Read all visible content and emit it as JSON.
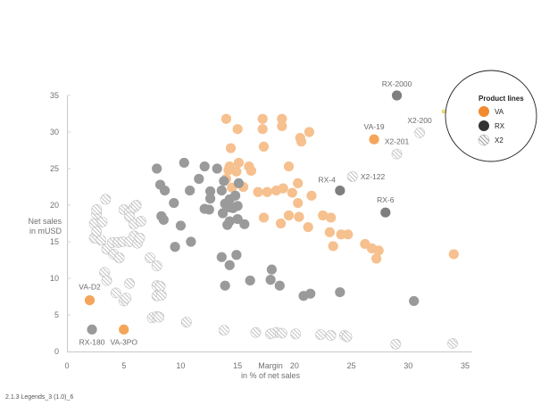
{
  "footer": "2.1.3 Legends_3 (1.0)_6",
  "chart_data": {
    "type": "scatter",
    "xlabel_lines": [
      "Margin",
      "in % of net sales"
    ],
    "ylabel_lines": [
      "Net sales",
      "in mUSD"
    ],
    "xlim": [
      0,
      35
    ],
    "ylim": [
      0,
      35
    ],
    "x_ticks": [
      0,
      5,
      10,
      15,
      20,
      25,
      30,
      35
    ],
    "y_ticks": [
      0,
      5,
      10,
      15,
      20,
      25,
      30,
      35
    ],
    "grid": false,
    "legend": {
      "title": "Product lines",
      "placement": "top-right",
      "entries": [
        {
          "label": "VA",
          "series": "VA"
        },
        {
          "label": "RX",
          "series": "RX"
        },
        {
          "label": "X2",
          "series": "X2"
        }
      ]
    },
    "colors": {
      "VA": "#f6c08f",
      "RX": "#9a9a9a",
      "X2_stripe": "#b9b9b9",
      "VA_legend": "#f28a2e",
      "RX_legend": "#333333",
      "highlight": "#f5a55a"
    },
    "series": [
      {
        "name": "VA",
        "points": [
          [
            14,
            31.8
          ],
          [
            17.2,
            31.8
          ],
          [
            18.9,
            31.8
          ],
          [
            21.3,
            30.0
          ],
          [
            15,
            30.4
          ],
          [
            17.2,
            30.4
          ],
          [
            18.9,
            30.8
          ],
          [
            20.5,
            29.2
          ],
          [
            20.6,
            28.7
          ],
          [
            14.4,
            27.8
          ],
          [
            17.3,
            28.0
          ],
          [
            15.1,
            25.8
          ],
          [
            14.3,
            25.3
          ],
          [
            14.2,
            24.8
          ],
          [
            14.9,
            24.6
          ],
          [
            16.0,
            25.3
          ],
          [
            16.2,
            24.7
          ],
          [
            19.5,
            25.3
          ],
          [
            14.0,
            23.6
          ],
          [
            14.5,
            22.4
          ],
          [
            15.5,
            22.5
          ],
          [
            16.8,
            21.8
          ],
          [
            17.6,
            21.8
          ],
          [
            18.4,
            22.0
          ],
          [
            19.0,
            22.3
          ],
          [
            19.8,
            21.7
          ],
          [
            20.3,
            23.0
          ],
          [
            21.5,
            21.3
          ],
          [
            20.3,
            20.3
          ],
          [
            17.3,
            18.3
          ],
          [
            18.8,
            17.5
          ],
          [
            19.5,
            18.6
          ],
          [
            20.4,
            18.4
          ],
          [
            21.2,
            17.0
          ],
          [
            22.5,
            18.6
          ],
          [
            23.2,
            18.3
          ],
          [
            23.1,
            16.3
          ],
          [
            23.4,
            14.4
          ],
          [
            24.1,
            16.0
          ],
          [
            24.7,
            16.0
          ],
          [
            26.2,
            14.7
          ],
          [
            26.8,
            14.1
          ],
          [
            27.4,
            13.8
          ],
          [
            27.2,
            12.7
          ],
          [
            34.0,
            13.3
          ]
        ]
      },
      {
        "name": "RX",
        "points": [
          [
            7.9,
            25.0
          ],
          [
            8.2,
            22.8
          ],
          [
            8.6,
            22.0
          ],
          [
            8.3,
            18.5
          ],
          [
            8.5,
            18.0
          ],
          [
            9.4,
            20.3
          ],
          [
            9.5,
            14.3
          ],
          [
            10.0,
            17.2
          ],
          [
            10.3,
            25.8
          ],
          [
            10.8,
            22.0
          ],
          [
            10.9,
            15.0
          ],
          [
            11.6,
            23.6
          ],
          [
            12.1,
            19.5
          ],
          [
            12.6,
            21.9
          ],
          [
            12.6,
            20.9
          ],
          [
            12.5,
            19.4
          ],
          [
            12.1,
            25.3
          ],
          [
            13.2,
            25.0
          ],
          [
            13.6,
            22.0
          ],
          [
            13.8,
            23.3
          ],
          [
            13.9,
            20.2
          ],
          [
            13.7,
            18.9
          ],
          [
            14.1,
            17.3
          ],
          [
            14.3,
            17.8
          ],
          [
            14.6,
            19.6
          ],
          [
            14.3,
            19.7
          ],
          [
            14.3,
            20.8
          ],
          [
            15.0,
            19.9
          ],
          [
            15.0,
            18.1
          ],
          [
            15.1,
            23.0
          ],
          [
            14.8,
            21.3
          ],
          [
            15.6,
            17.4
          ],
          [
            13.6,
            12.9
          ],
          [
            14.3,
            11.8
          ],
          [
            14.9,
            13.2
          ],
          [
            13.9,
            9.0
          ],
          [
            16.1,
            9.7
          ],
          [
            17.9,
            9.8
          ],
          [
            18.0,
            11.2
          ],
          [
            18.7,
            9.0
          ],
          [
            20.8,
            7.6
          ],
          [
            21.4,
            7.9
          ],
          [
            24.0,
            8.1
          ],
          [
            2.2,
            3.0
          ],
          [
            30.5,
            6.9
          ]
        ]
      },
      {
        "name": "X2",
        "points": [
          [
            2.4,
            17.5
          ],
          [
            2.4,
            15.5
          ],
          [
            2.6,
            18.8
          ],
          [
            2.6,
            19.4
          ],
          [
            2.6,
            16.4
          ],
          [
            3.0,
            15.2
          ],
          [
            3.1,
            17.7
          ],
          [
            3.4,
            20.8
          ],
          [
            3.5,
            14.0
          ],
          [
            4.0,
            14.9
          ],
          [
            4.5,
            14.9
          ],
          [
            4.1,
            13.3
          ],
          [
            4.6,
            12.8
          ],
          [
            4.9,
            15.0
          ],
          [
            5.0,
            19.4
          ],
          [
            5.5,
            19.0
          ],
          [
            5.5,
            18.4
          ],
          [
            5.5,
            15.0
          ],
          [
            5.9,
            17.4
          ],
          [
            5.9,
            15.8
          ],
          [
            6.2,
            14.8
          ],
          [
            6.4,
            15.5
          ],
          [
            6.5,
            17.8
          ],
          [
            5.9,
            19.7
          ],
          [
            6.1,
            20.0
          ],
          [
            3.3,
            10.8
          ],
          [
            3.5,
            9.7
          ],
          [
            4.3,
            8.0
          ],
          [
            5.0,
            6.9
          ],
          [
            5.2,
            7.3
          ],
          [
            5.5,
            9.3
          ],
          [
            7.3,
            12.8
          ],
          [
            7.9,
            11.7
          ],
          [
            7.9,
            9.0
          ],
          [
            8.2,
            8.9
          ],
          [
            7.9,
            7.6
          ],
          [
            8.3,
            7.7
          ],
          [
            7.5,
            4.6
          ],
          [
            7.9,
            4.8
          ],
          [
            8.1,
            4.7
          ],
          [
            10.5,
            4.0
          ],
          [
            13.8,
            2.9
          ],
          [
            16.6,
            2.6
          ],
          [
            18.4,
            2.6
          ],
          [
            18.9,
            2.5
          ],
          [
            17.9,
            2.4
          ],
          [
            20.1,
            2.4
          ],
          [
            22.3,
            2.3
          ],
          [
            23.2,
            2.2
          ],
          [
            24.4,
            2.2
          ],
          [
            24.6,
            2.0
          ],
          [
            28.9,
            1.0
          ],
          [
            33.9,
            1.1
          ],
          [
            25.1,
            23.9
          ],
          [
            29.0,
            27.0
          ],
          [
            31.0,
            29.9
          ]
        ]
      },
      {
        "name": "VA highlighted",
        "points": [
          [
            2.0,
            7.0
          ],
          [
            5.0,
            3.0
          ],
          [
            27.0,
            29.0
          ]
        ]
      },
      {
        "name": "RX highlighted",
        "points": [
          [
            29.0,
            35.0
          ],
          [
            24.0,
            22.0
          ],
          [
            28.0,
            19.0
          ]
        ]
      }
    ],
    "annotations": [
      {
        "text": "RX-2000",
        "x": 29.0,
        "y": 35.0
      },
      {
        "text": "X2-200",
        "x": 31.0,
        "y": 29.9
      },
      {
        "text": "VA-19",
        "x": 27.0,
        "y": 29.0
      },
      {
        "text": "X2-201",
        "x": 29.0,
        "y": 27.0
      },
      {
        "text": "X2-122",
        "x": 25.1,
        "y": 23.9
      },
      {
        "text": "RX-4",
        "x": 24.0,
        "y": 22.0
      },
      {
        "text": "RX-6",
        "x": 28.0,
        "y": 19.0
      },
      {
        "text": "VA-D2",
        "x": 2.0,
        "y": 7.0
      },
      {
        "text": "RX-180",
        "x": 2.2,
        "y": 3.0
      },
      {
        "text": "VA-3PO",
        "x": 5.0,
        "y": 3.0
      }
    ]
  }
}
